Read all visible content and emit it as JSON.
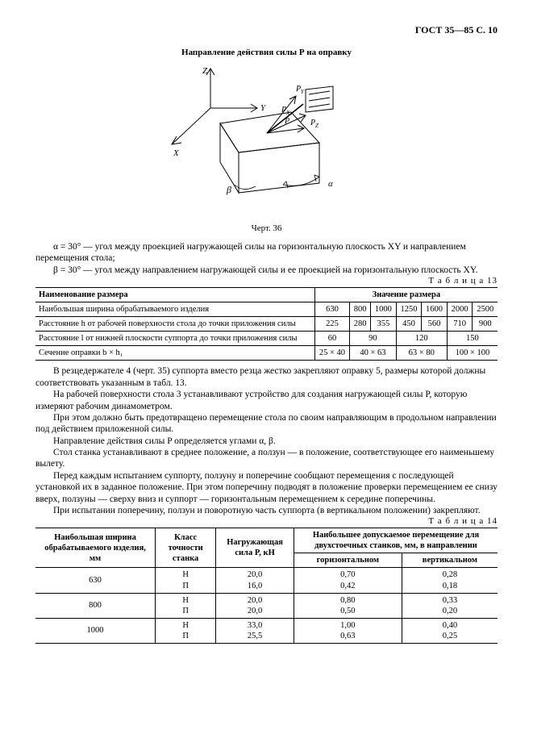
{
  "header": {
    "code": "ГОСТ 35—85 С. 10"
  },
  "fig": {
    "title": "Направление действия силы Р на оправку",
    "caption": "Черт. 36"
  },
  "text1": "α = 30° — угол между проекцией нагружающей силы на горизонтальную плоскость XY и направлением перемещения стола;",
  "text2": "β = 30° — угол между направлением нагружающей силы и ее проекцией на горизонтальную плоскость XY.",
  "t13": {
    "label": "Т а б л и ц а   13",
    "head_name": "Наименование размера",
    "head_value": "Значение размера",
    "rows": [
      {
        "label": "Наибольшая ширина обрабатываемого изделия",
        "vals": [
          "630",
          "800",
          "1000",
          "1250",
          "1600",
          "2000",
          "2500"
        ],
        "spans": [
          1,
          1,
          1,
          1,
          1,
          1,
          1
        ]
      },
      {
        "label": "Расстояние h от рабочей поверхности стола до точки приложения силы",
        "vals": [
          "225",
          "280",
          "355",
          "450",
          "560",
          "710",
          "900"
        ],
        "spans": [
          1,
          1,
          1,
          1,
          1,
          1,
          1
        ]
      },
      {
        "label": "Расстояние l от нижней плоскости суппорта до точки приложения силы",
        "vals": [
          "60",
          "90",
          "120",
          "150"
        ],
        "spans": [
          1,
          2,
          2,
          2
        ]
      },
      {
        "label": "Сечение оправки b × h₁",
        "vals": [
          "25 × 40",
          "40 × 63",
          "63 × 80",
          "100 × 100"
        ],
        "spans": [
          1,
          2,
          2,
          2
        ]
      }
    ]
  },
  "mid": {
    "p1": "В резцедержателе 4 (черт. 35) суппорта вместо резца жестко закрепляют оправку 5, размеры которой должны соответствовать указанным в табл. 13.",
    "p2": "На рабочей поверхности стола 3 устанавливают устройство для создания нагружающей силы P, которую измеряют рабочим динамометром.",
    "p3": "При этом должно быть предотвращено перемещение стола по своим направляющим в продольном направлении под действием приложенной силы.",
    "p4": "Направление действия силы P определяется углами α, β.",
    "p5": "Стол станка устанавливают в среднее положение, а ползун — в положение, соответствующее его наименьшему вылету.",
    "p6": "Перед каждым испытанием суппорту, ползуну и поперечине сообщают перемещения с последующей установкой их в заданное положение. При этом поперечину подводят в положение проверки перемещением ее снизу вверх, ползуны — сверху вниз и суппорт — горизонтальным перемещением к середине поперечины.",
    "p7": "При испытании поперечину, ползун и поворотную часть суппорта (в вертикальном положении) закрепляют."
  },
  "t14": {
    "label": "Т а б л и ц а   14",
    "head": {
      "col1": "Наибольшая ширина обрабатываемого изделия, мм",
      "col2": "Класс точности станка",
      "col3": "Нагружающая сила P, кН",
      "col4": "Наибольшее допускаемое перемещение для двухстоечных станков, мм, в направлении",
      "sub1": "горизонтальном",
      "sub2": "вертикальном"
    },
    "rows": [
      {
        "w": "630",
        "k": [
          "Н",
          "П"
        ],
        "p": [
          "20,0",
          "16,0"
        ],
        "h": [
          "0,70",
          "0,42"
        ],
        "v": [
          "0,28",
          "0,18"
        ]
      },
      {
        "w": "800",
        "k": [
          "Н",
          "П"
        ],
        "p": [
          "20,0",
          "20,0"
        ],
        "h": [
          "0,80",
          "0,50"
        ],
        "v": [
          "0,33",
          "0,20"
        ]
      },
      {
        "w": "1000",
        "k": [
          "Н",
          "П"
        ],
        "p": [
          "33,0",
          "25,5"
        ],
        "h": [
          "1,00",
          "0,63"
        ],
        "v": [
          "0,40",
          "0,25"
        ]
      }
    ]
  },
  "style": {
    "font_body": 11.5,
    "font_table": 10.5,
    "color_text": "#000000",
    "color_bg": "#ffffff",
    "color_border": "#000000"
  }
}
